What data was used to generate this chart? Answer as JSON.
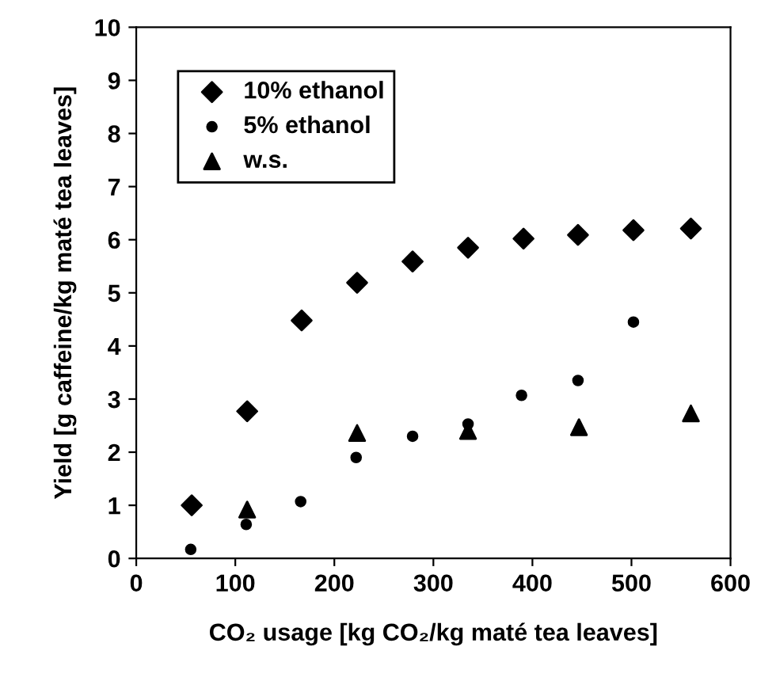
{
  "chart_data": {
    "type": "scatter",
    "xlabel": "CO₂ usage [kg CO₂/kg maté tea leaves]",
    "ylabel": "Yield [g caffeine/kg maté tea leaves]",
    "xlim": [
      0,
      600
    ],
    "xticks": [
      0,
      100,
      200,
      300,
      400,
      500,
      600
    ],
    "ylim": [
      0,
      10
    ],
    "yticks": [
      0,
      1,
      2,
      3,
      4,
      5,
      6,
      7,
      8,
      9,
      10
    ],
    "grid": false,
    "legend": "top left",
    "series": [
      {
        "name": "10% ethanol",
        "color": "#000000",
        "marker": "diamond",
        "x": [
          56,
          112,
          167,
          223,
          279,
          335,
          391,
          446,
          502,
          560
        ],
        "values": [
          1.0,
          2.77,
          4.48,
          5.19,
          5.59,
          5.85,
          6.02,
          6.09,
          6.18,
          6.21
        ]
      },
      {
        "name": "5% ethanol",
        "color": "#000000",
        "marker": "circle",
        "x": [
          55,
          111,
          166,
          222,
          279,
          335,
          389,
          446,
          502
        ],
        "values": [
          0.17,
          0.64,
          1.07,
          1.9,
          2.3,
          2.53,
          3.07,
          3.35,
          4.45
        ]
      },
      {
        "name": "w.s.",
        "color": "#000000",
        "marker": "triangle",
        "x": [
          112,
          223,
          335,
          447,
          560
        ],
        "values": [
          0.92,
          2.36,
          2.4,
          2.47,
          2.73
        ]
      }
    ]
  }
}
